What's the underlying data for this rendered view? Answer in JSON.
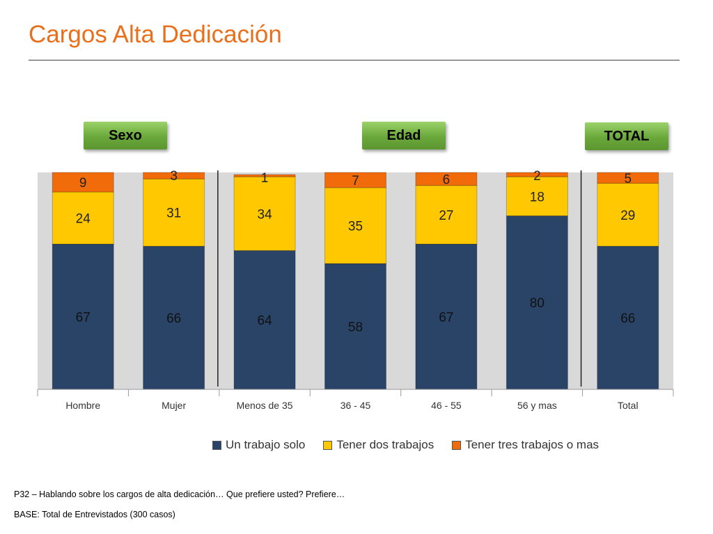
{
  "header": {
    "title": "Cargos Alta Dedicación"
  },
  "groups": {
    "sexo": "Sexo",
    "edad": "Edad",
    "total": "TOTAL"
  },
  "colors": {
    "accent": "#e8701c",
    "button": "#6aa83a",
    "series": [
      "#2a4467",
      "#ffc800",
      "#f26b0a"
    ],
    "plot_bg": "#d9d9d9"
  },
  "chart_data": {
    "type": "bar",
    "stacked": true,
    "categories": [
      "Hombre",
      "Mujer",
      "Menos de 35",
      "36 - 45",
      "46 - 55",
      "56 y mas",
      "Total"
    ],
    "series": [
      {
        "name": "Un trabajo solo",
        "values": [
          67,
          66,
          64,
          58,
          67,
          80,
          66
        ]
      },
      {
        "name": "Tener dos trabajos",
        "values": [
          24,
          31,
          34,
          35,
          27,
          18,
          29
        ]
      },
      {
        "name": "Tener tres trabajos o mas",
        "values": [
          9,
          3,
          1,
          7,
          6,
          2,
          5
        ]
      }
    ],
    "ylim": [
      0,
      100
    ],
    "legend": "bottom",
    "grid": false
  },
  "footnotes": {
    "question": "P32 – Hablando sobre los cargos de alta dedicación… Que prefiere usted? Prefiere…",
    "base": "BASE: Total de Entrevistados (300 casos)"
  }
}
